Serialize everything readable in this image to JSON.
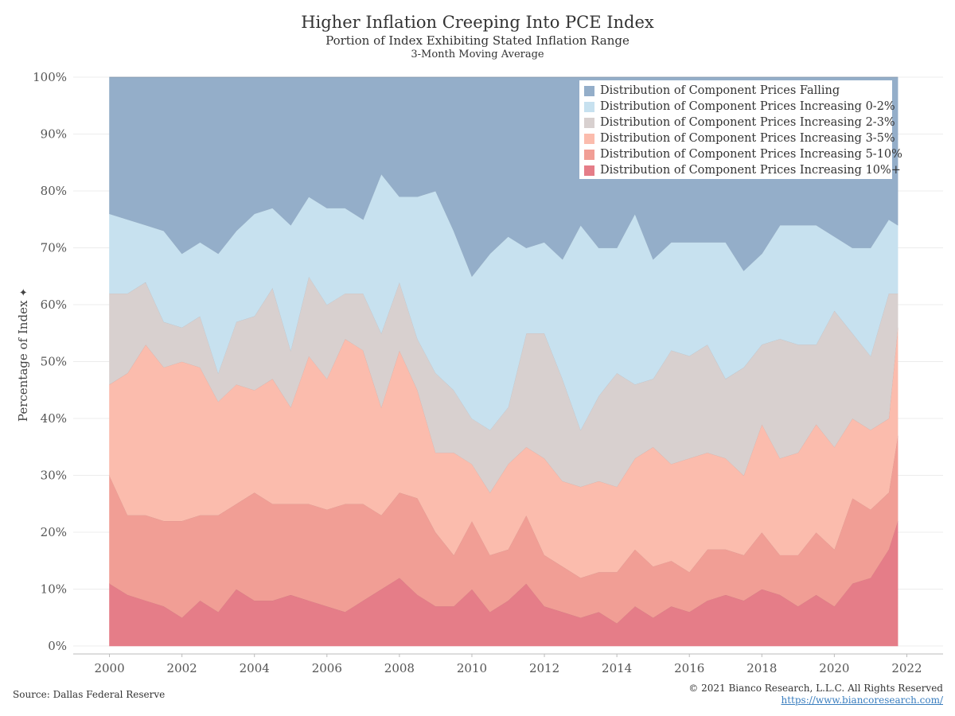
{
  "header": {
    "title": "Higher Inflation Creeping Into PCE Index",
    "subtitle": "Portion of Index Exhibiting Stated Inflation Range",
    "subtitle2": "3-Month Moving Average"
  },
  "footer": {
    "source": "Source: Dallas Federal Reserve",
    "copyright": "© 2021 Bianco Research, L.L.C. All Rights Reserved",
    "url": "https://www.biancoresearch.com/"
  },
  "chart_data": {
    "type": "area",
    "stacked": true,
    "title": "Higher Inflation Creeping Into PCE Index",
    "subtitle": "Portion of Index Exhibiting Stated Inflation Range",
    "ylabel": "Percentage of Index",
    "ylim": [
      0,
      100
    ],
    "yticks": [
      "0%",
      "10%",
      "20%",
      "30%",
      "40%",
      "50%",
      "60%",
      "70%",
      "80%",
      "90%",
      "100%"
    ],
    "xlim": [
      1999,
      2023
    ],
    "xticks": [
      "2000",
      "2002",
      "2004",
      "2006",
      "2008",
      "2010",
      "2012",
      "2014",
      "2016",
      "2018",
      "2020",
      "2022"
    ],
    "grid": true,
    "legend_position": "top-right",
    "x": [
      2000.0,
      2000.5,
      2001.0,
      2001.5,
      2002.0,
      2002.5,
      2003.0,
      2003.5,
      2004.0,
      2004.5,
      2005.0,
      2005.5,
      2006.0,
      2006.5,
      2007.0,
      2007.5,
      2008.0,
      2008.5,
      2009.0,
      2009.5,
      2010.0,
      2010.5,
      2011.0,
      2011.5,
      2012.0,
      2012.5,
      2013.0,
      2013.5,
      2014.0,
      2014.5,
      2015.0,
      2015.5,
      2016.0,
      2016.5,
      2017.0,
      2017.5,
      2018.0,
      2018.5,
      2019.0,
      2019.5,
      2020.0,
      2020.5,
      2021.0,
      2021.5,
      2021.75
    ],
    "series": [
      {
        "name": "Distribution of Component Prices Increasing 10%+",
        "color": "#e57d88",
        "values": [
          11,
          9,
          8,
          7,
          5,
          8,
          6,
          10,
          8,
          8,
          9,
          8,
          7,
          6,
          8,
          10,
          12,
          9,
          7,
          7,
          10,
          6,
          8,
          11,
          7,
          6,
          5,
          6,
          4,
          7,
          5,
          7,
          6,
          8,
          9,
          8,
          10,
          9,
          7,
          9,
          7,
          11,
          12,
          17,
          22
        ]
      },
      {
        "name": "Distribution of Component Prices Increasing 5-10%",
        "color": "#f19e95",
        "values": [
          19,
          14,
          15,
          15,
          17,
          15,
          17,
          15,
          19,
          17,
          16,
          17,
          17,
          19,
          17,
          13,
          15,
          17,
          13,
          9,
          12,
          10,
          9,
          12,
          9,
          8,
          7,
          7,
          9,
          10,
          9,
          8,
          7,
          9,
          8,
          8,
          10,
          7,
          9,
          11,
          10,
          15,
          12,
          10,
          15
        ]
      },
      {
        "name": "Distribution of Component Prices Increasing 3-5%",
        "color": "#fbbcad",
        "values": [
          16,
          25,
          30,
          27,
          28,
          26,
          20,
          21,
          18,
          22,
          17,
          26,
          23,
          29,
          27,
          19,
          25,
          19,
          14,
          18,
          10,
          11,
          15,
          12,
          17,
          15,
          16,
          16,
          15,
          16,
          21,
          17,
          20,
          17,
          16,
          14,
          19,
          17,
          18,
          19,
          18,
          14,
          14,
          13,
          19
        ]
      },
      {
        "name": "Distribution of Component Prices Increasing 2-3%",
        "color": "#d8d0cf",
        "values": [
          16,
          14,
          11,
          8,
          6,
          9,
          5,
          11,
          13,
          16,
          10,
          14,
          13,
          8,
          10,
          13,
          12,
          9,
          14,
          11,
          8,
          11,
          10,
          20,
          22,
          18,
          10,
          15,
          20,
          13,
          12,
          20,
          18,
          19,
          14,
          19,
          14,
          21,
          19,
          14,
          24,
          15,
          13,
          22,
          6
        ]
      },
      {
        "name": "Distribution of Component Prices Increasing 0-2%",
        "color": "#c7e1ef",
        "values": [
          14,
          13,
          10,
          16,
          13,
          13,
          21,
          16,
          18,
          14,
          22,
          14,
          17,
          15,
          13,
          28,
          15,
          25,
          32,
          28,
          25,
          31,
          30,
          15,
          16,
          21,
          36,
          26,
          22,
          30,
          21,
          19,
          20,
          18,
          24,
          17,
          16,
          20,
          21,
          21,
          13,
          15,
          19,
          13,
          12
        ]
      },
      {
        "name": "Distribution of Component Prices Falling",
        "color": "#94aec9",
        "values": [
          24,
          25,
          26,
          27,
          31,
          29,
          31,
          27,
          24,
          23,
          26,
          21,
          23,
          23,
          25,
          17,
          21,
          21,
          20,
          27,
          35,
          31,
          28,
          30,
          29,
          32,
          26,
          30,
          30,
          24,
          32,
          29,
          29,
          29,
          29,
          34,
          31,
          26,
          26,
          26,
          28,
          30,
          30,
          25,
          26
        ]
      }
    ]
  }
}
